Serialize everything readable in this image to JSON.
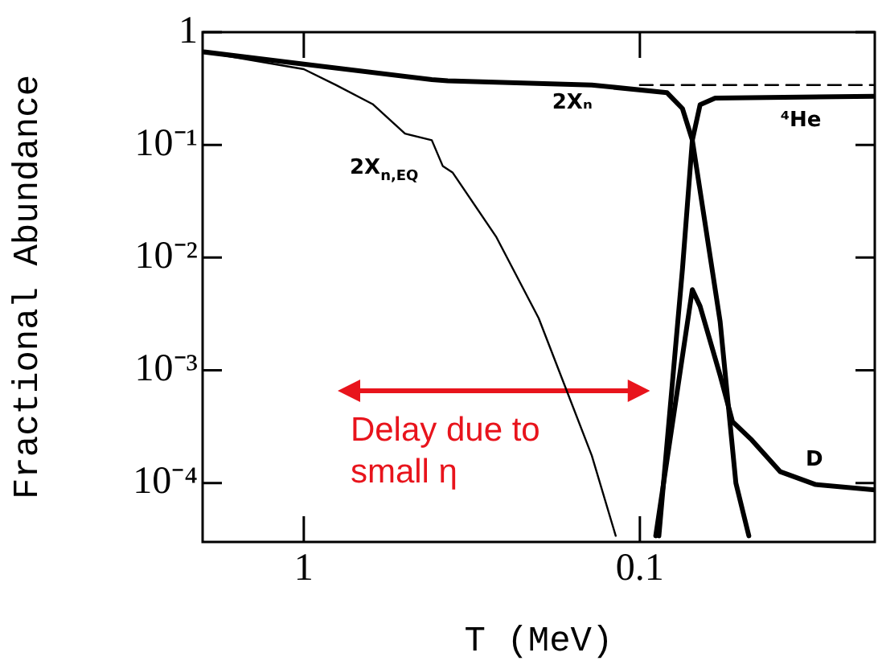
{
  "chart_data": {
    "type": "line",
    "xlabel": "T (MeV)",
    "ylabel": "Fractional Abundance",
    "log": "xy",
    "xlim": [
      2,
      0.02
    ],
    "xticks": [
      1,
      0.1
    ],
    "ylim": [
      3e-05,
      1
    ],
    "yticks": [
      1,
      {
        "value": 0.1,
        "label": "10⁻¹"
      },
      {
        "value": 0.01,
        "label": "10⁻²"
      },
      {
        "value": 0.001,
        "label": "10⁻³"
      },
      {
        "value": 0.0001,
        "label": "10⁻⁴"
      }
    ],
    "grid": false,
    "legend": false,
    "marker": "none",
    "series": [
      {
        "name": "2Xₙ",
        "color": "#000000",
        "x": [
          2,
          1,
          0.416,
          0.373,
          0.139,
          0.083,
          0.0747,
          0.0698,
          0.0577,
          0.0518,
          0.0474
        ],
        "values": [
          0.67,
          0.52,
          0.38,
          0.37,
          0.34,
          0.29,
          0.21,
          0.11,
          0.0027,
          0.0001,
          3.4e-05
        ]
      },
      {
        "name": "2X$_{n,EQ}$",
        "color": "#000000",
        "x": [
          2,
          1,
          0.803,
          0.624,
          0.5,
          0.416,
          0.386,
          0.361,
          0.268,
          0.2,
          0.139,
          0.118
        ],
        "values": [
          0.67,
          0.47,
          0.34,
          0.23,
          0.126,
          0.11,
          0.065,
          0.057,
          0.0154,
          0.0029,
          0.000175,
          3.4e-05
        ]
      },
      {
        "name": "⁴He",
        "color": "#000000",
        "x": [
          0.0878,
          0.0747,
          0.0698,
          0.0662,
          0.0597,
          0.02
        ],
        "values": [
          3.4e-05,
          0.0079,
          0.11,
          0.227,
          0.26,
          0.27
        ]
      },
      {
        "name": "D",
        "color": "#000000",
        "x": [
          0.0897,
          0.0698,
          0.0662,
          0.0577,
          0.053,
          0.0464,
          0.0382,
          0.03,
          0.02
        ],
        "values": [
          3.4e-05,
          0.0052,
          0.0037,
          0.0009,
          0.00035,
          0.00024,
          0.000126,
          9.7e-05,
          8.7e-05
        ]
      },
      {
        "color": "#000000",
        "line_style": "dashed",
        "x": [
          0.1,
          0.02
        ],
        "values": [
          0.34,
          0.34
        ]
      }
    ],
    "annotations": [
      "Delay due to small η"
    ]
  }
}
